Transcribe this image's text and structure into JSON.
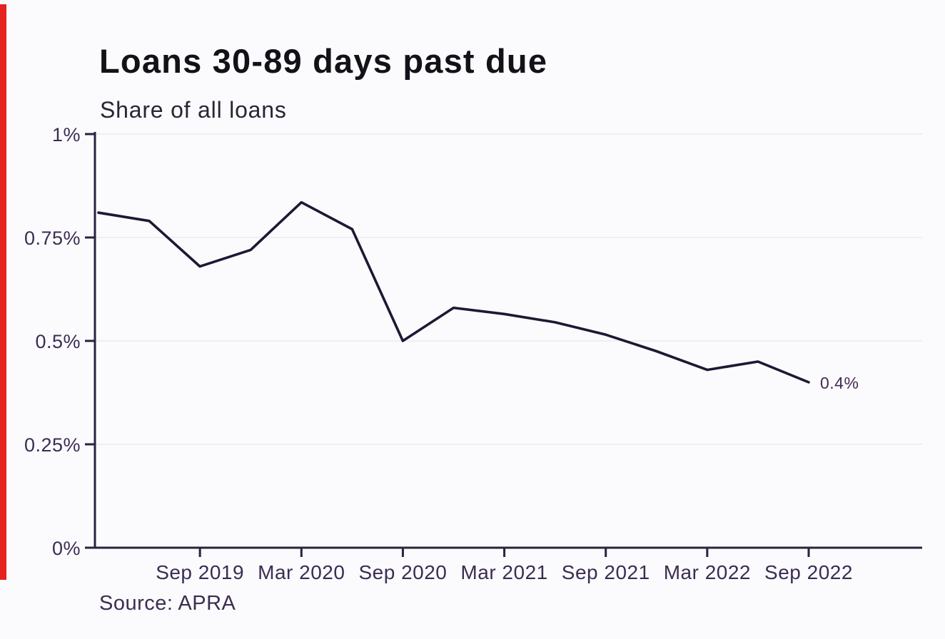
{
  "page": {
    "background": "#fbfbfd",
    "left_stripe_color": "#e6231d"
  },
  "chart_data": {
    "type": "line",
    "title": "Loans 30-89 days past due",
    "subtitle": "Share of all loans",
    "source": "Source: APRA",
    "x": [
      "Mar 2019",
      "Jun 2019",
      "Sep 2019",
      "Dec 2019",
      "Mar 2020",
      "Jun 2020",
      "Sep 2020",
      "Dec 2020",
      "Mar 2021",
      "Jun 2021",
      "Sep 2021",
      "Dec 2021",
      "Mar 2022",
      "Jun 2022",
      "Sep 2022"
    ],
    "values": [
      0.81,
      0.79,
      0.68,
      0.72,
      0.835,
      0.77,
      0.5,
      0.58,
      0.565,
      0.545,
      0.515,
      0.475,
      0.43,
      0.45,
      0.4
    ],
    "x_tick_labels": [
      "Sep 2019",
      "Mar 2020",
      "Sep 2020",
      "Mar 2021",
      "Sep 2021",
      "Mar 2022",
      "Sep 2022"
    ],
    "x_tick_indices": [
      2,
      4,
      6,
      8,
      10,
      12,
      14
    ],
    "y_ticks": [
      {
        "value": 0,
        "label": "0%"
      },
      {
        "value": 0.25,
        "label": "0.25%"
      },
      {
        "value": 0.5,
        "label": "0.5%"
      },
      {
        "value": 0.75,
        "label": "0.75%"
      },
      {
        "value": 1,
        "label": "1%"
      }
    ],
    "ylim": [
      0,
      1
    ],
    "grid": "horizontal-light",
    "legend": "none",
    "end_label": "0.4%",
    "colors": {
      "line": "#1e1834",
      "axis": "#2a2240",
      "tick_text": "#3b2d52",
      "grid": "#e6edee",
      "annotation": "#452853"
    }
  }
}
